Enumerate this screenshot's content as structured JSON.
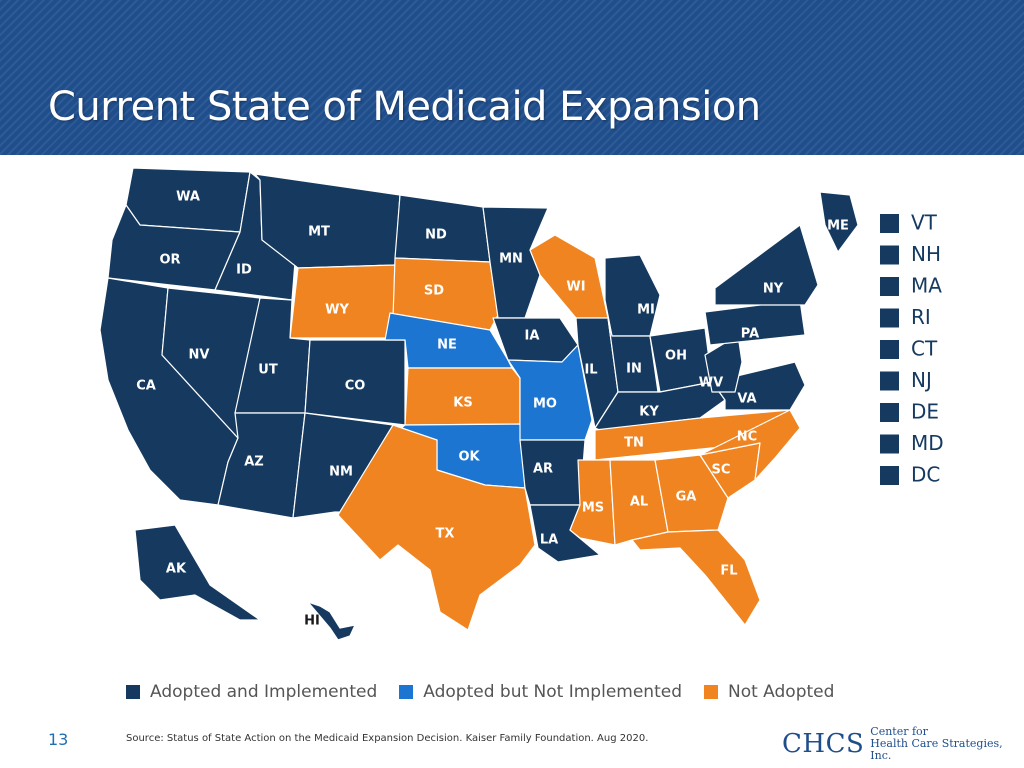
{
  "slide": {
    "title": "Current State of Medicaid Expansion",
    "page_number": "13",
    "source": "Source: Status of State Action on the Medicaid Expansion Decision. Kaiser Family Foundation. Aug 2020."
  },
  "logo": {
    "mark": "CHCS",
    "line1": "Center for",
    "line2": "Health Care Strategies, Inc."
  },
  "colors": {
    "banner": "#1f4e8c",
    "adopted_implemented": "#163a5f",
    "adopted_not_implemented": "#1b75d1",
    "not_adopted": "#f08421"
  },
  "legend": [
    {
      "key": "adopted_implemented",
      "label": "Adopted and Implemented"
    },
    {
      "key": "adopted_not_implemented",
      "label": "Adopted but Not Implemented"
    },
    {
      "key": "not_adopted",
      "label": "Not Adopted"
    }
  ],
  "side_legend": [
    "VT",
    "NH",
    "MA",
    "RI",
    "CT",
    "NJ",
    "DE",
    "MD",
    "DC"
  ],
  "states": [
    {
      "abbr": "WA",
      "status": "adopted_implemented"
    },
    {
      "abbr": "OR",
      "status": "adopted_implemented"
    },
    {
      "abbr": "CA",
      "status": "adopted_implemented"
    },
    {
      "abbr": "ID",
      "status": "adopted_implemented"
    },
    {
      "abbr": "NV",
      "status": "adopted_implemented"
    },
    {
      "abbr": "MT",
      "status": "adopted_implemented"
    },
    {
      "abbr": "WY",
      "status": "not_adopted"
    },
    {
      "abbr": "UT",
      "status": "adopted_implemented"
    },
    {
      "abbr": "AZ",
      "status": "adopted_implemented"
    },
    {
      "abbr": "CO",
      "status": "adopted_implemented"
    },
    {
      "abbr": "NM",
      "status": "adopted_implemented"
    },
    {
      "abbr": "ND",
      "status": "adopted_implemented"
    },
    {
      "abbr": "SD",
      "status": "not_adopted"
    },
    {
      "abbr": "NE",
      "status": "adopted_not_implemented"
    },
    {
      "abbr": "KS",
      "status": "not_adopted"
    },
    {
      "abbr": "OK",
      "status": "adopted_not_implemented"
    },
    {
      "abbr": "TX",
      "status": "not_adopted"
    },
    {
      "abbr": "MN",
      "status": "adopted_implemented"
    },
    {
      "abbr": "IA",
      "status": "adopted_implemented"
    },
    {
      "abbr": "MO",
      "status": "adopted_not_implemented"
    },
    {
      "abbr": "AR",
      "status": "adopted_implemented"
    },
    {
      "abbr": "LA",
      "status": "adopted_implemented"
    },
    {
      "abbr": "WI",
      "status": "not_adopted"
    },
    {
      "abbr": "IL",
      "status": "adopted_implemented"
    },
    {
      "abbr": "MI",
      "status": "adopted_implemented"
    },
    {
      "abbr": "IN",
      "status": "adopted_implemented"
    },
    {
      "abbr": "OH",
      "status": "adopted_implemented"
    },
    {
      "abbr": "KY",
      "status": "adopted_implemented"
    },
    {
      "abbr": "TN",
      "status": "not_adopted"
    },
    {
      "abbr": "MS",
      "status": "not_adopted"
    },
    {
      "abbr": "AL",
      "status": "not_adopted"
    },
    {
      "abbr": "GA",
      "status": "not_adopted"
    },
    {
      "abbr": "FL",
      "status": "not_adopted"
    },
    {
      "abbr": "SC",
      "status": "not_adopted"
    },
    {
      "abbr": "NC",
      "status": "not_adopted"
    },
    {
      "abbr": "VA",
      "status": "adopted_implemented"
    },
    {
      "abbr": "WV",
      "status": "adopted_implemented"
    },
    {
      "abbr": "PA",
      "status": "adopted_implemented"
    },
    {
      "abbr": "NY",
      "status": "adopted_implemented"
    },
    {
      "abbr": "ME",
      "status": "adopted_implemented"
    },
    {
      "abbr": "AK",
      "status": "adopted_implemented"
    },
    {
      "abbr": "HI",
      "status": "adopted_implemented"
    }
  ]
}
